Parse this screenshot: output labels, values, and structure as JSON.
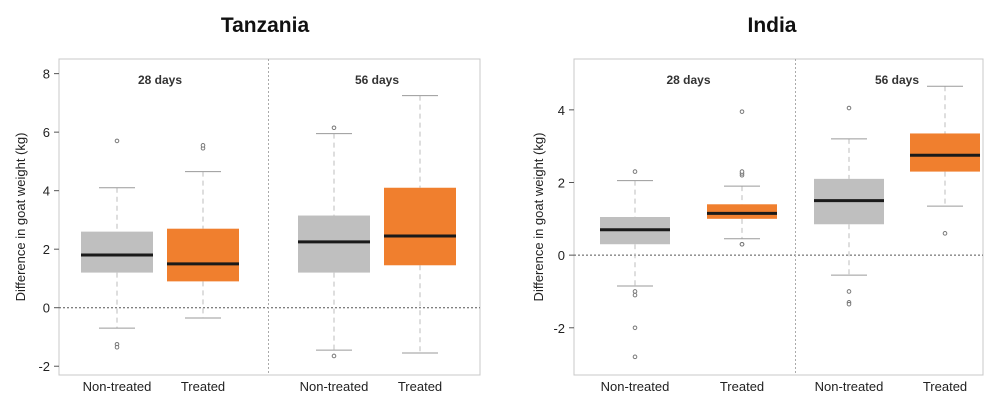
{
  "chart_data": [
    {
      "type": "box",
      "title": "Tanzania",
      "ylabel": "Difference in goat weight (kg)",
      "ylim": [
        -2.3,
        8.5
      ],
      "yticks": [
        -2,
        0,
        2,
        4,
        6,
        8
      ],
      "tick_labels": [
        "-2",
        "0",
        "2",
        "4",
        "6",
        "8"
      ],
      "reference_line": 0,
      "groups": [
        {
          "label": "28 days",
          "boxes": [
            {
              "category": "Non-treated",
              "color": "#bfbfbf",
              "whisker_low": -0.7,
              "q1": 1.2,
              "median": 1.8,
              "q3": 2.6,
              "whisker_high": 4.1,
              "outliers": [
                5.7,
                -1.25,
                -1.35
              ]
            },
            {
              "category": "Treated",
              "color": "#f07f2e",
              "whisker_low": -0.35,
              "q1": 0.9,
              "median": 1.5,
              "q3": 2.7,
              "whisker_high": 4.65,
              "outliers": [
                5.45,
                5.55
              ]
            }
          ]
        },
        {
          "label": "56 days",
          "boxes": [
            {
              "category": "Non-treated",
              "color": "#bfbfbf",
              "whisker_low": -1.45,
              "q1": 1.2,
              "median": 2.25,
              "q3": 3.15,
              "whisker_high": 5.95,
              "outliers": [
                6.15,
                -1.65
              ]
            },
            {
              "category": "Treated",
              "color": "#f07f2e",
              "whisker_low": -1.55,
              "q1": 1.45,
              "median": 2.45,
              "q3": 4.1,
              "whisker_high": 7.25,
              "outliers": []
            }
          ]
        }
      ]
    },
    {
      "type": "box",
      "title": "India",
      "ylabel": "Difference in goat weight (kg)",
      "ylim": [
        -3.3,
        5.4
      ],
      "yticks": [
        -2,
        0,
        2,
        4
      ],
      "tick_labels": [
        "-2",
        "0",
        "2",
        "4"
      ],
      "reference_line": 0,
      "groups": [
        {
          "label": "28 days",
          "boxes": [
            {
              "category": "Non-treated",
              "color": "#bfbfbf",
              "whisker_low": -0.85,
              "q1": 0.3,
              "median": 0.7,
              "q3": 1.05,
              "whisker_high": 2.05,
              "outliers": [
                2.3,
                -1.0,
                -1.1,
                -2.0,
                -2.8
              ]
            },
            {
              "category": "Treated",
              "color": "#f07f2e",
              "whisker_low": 0.45,
              "q1": 1.0,
              "median": 1.15,
              "q3": 1.4,
              "whisker_high": 1.9,
              "outliers": [
                2.2,
                2.25,
                2.3,
                3.95,
                0.3,
                0.3
              ]
            }
          ]
        },
        {
          "label": "56 days",
          "boxes": [
            {
              "category": "Non-treated",
              "color": "#bfbfbf",
              "whisker_low": -0.55,
              "q1": 0.85,
              "median": 1.5,
              "q3": 2.1,
              "whisker_high": 3.2,
              "outliers": [
                4.05,
                -1.0,
                -1.3,
                -1.35
              ]
            },
            {
              "category": "Treated",
              "color": "#f07f2e",
              "whisker_low": 1.35,
              "q1": 2.3,
              "median": 2.75,
              "q3": 3.35,
              "whisker_high": 4.65,
              "outliers": [
                0.6
              ]
            }
          ]
        }
      ]
    }
  ]
}
